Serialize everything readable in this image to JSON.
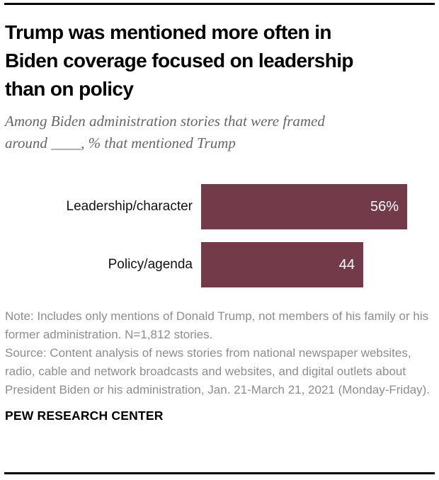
{
  "header": {
    "title_lines": [
      "Trump was mentioned more often in",
      "Biden coverage focused on leadership",
      "than on policy"
    ],
    "subtitle_lines": [
      "Among Biden administration stories that were framed",
      "around ____, % that mentioned Trump"
    ]
  },
  "chart_data": {
    "type": "bar",
    "orientation": "horizontal",
    "categories": [
      "Leadership/character",
      "Policy/agenda"
    ],
    "values": [
      56,
      44
    ],
    "value_labels": [
      "56%",
      "44"
    ],
    "xlim": [
      0,
      56
    ],
    "grid": false,
    "legend": false,
    "bar_color": "#733b4a",
    "value_label_color": "#ffffff"
  },
  "footnotes": {
    "note": "Note: Includes only mentions of Donald Trump, not members of his family or his former administration. N=1,812 stories.",
    "source": "Source: Content analysis of news stories from national newspaper websites, radio, cable and network broadcasts and websites, and digital outlets about President Biden or his administration, Jan. 21-March 21, 2021 (Monday-Friday)."
  },
  "footer": {
    "brand": "PEW RESEARCH CENTER"
  },
  "colors": {
    "title": "#000000",
    "subtitle": "#666666",
    "notes": "#8d8d8d",
    "rule": "#000000"
  }
}
